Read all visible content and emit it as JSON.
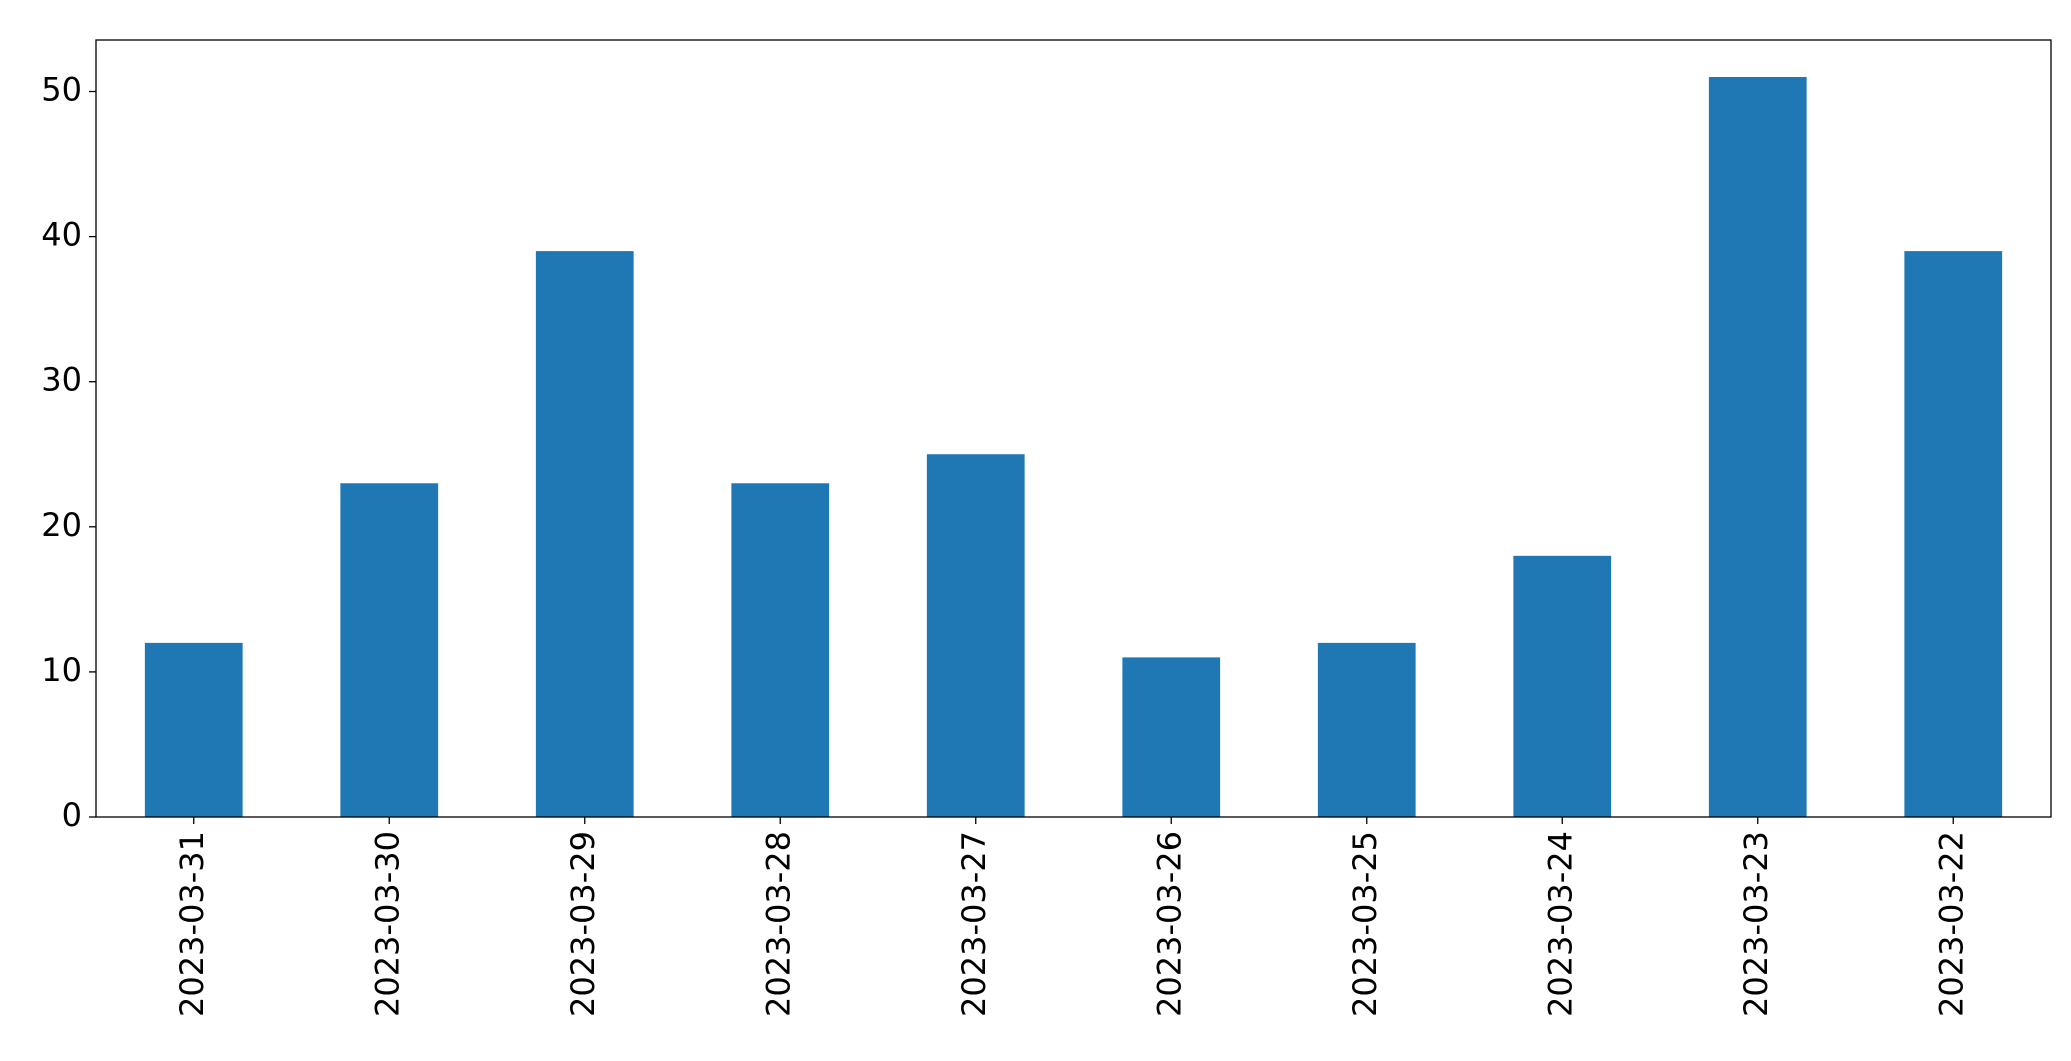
{
  "chart_data": {
    "type": "bar",
    "categories": [
      "2023-03-31",
      "2023-03-30",
      "2023-03-29",
      "2023-03-28",
      "2023-03-27",
      "2023-03-26",
      "2023-03-25",
      "2023-03-24",
      "2023-03-23",
      "2023-03-22"
    ],
    "values": [
      12,
      23,
      39,
      23,
      25,
      11,
      12,
      18,
      51,
      39
    ],
    "color": "#1f77b4",
    "ylim": [
      0,
      53.55
    ],
    "yticks": [
      0,
      10,
      20,
      30,
      40,
      50
    ],
    "grid": false
  }
}
